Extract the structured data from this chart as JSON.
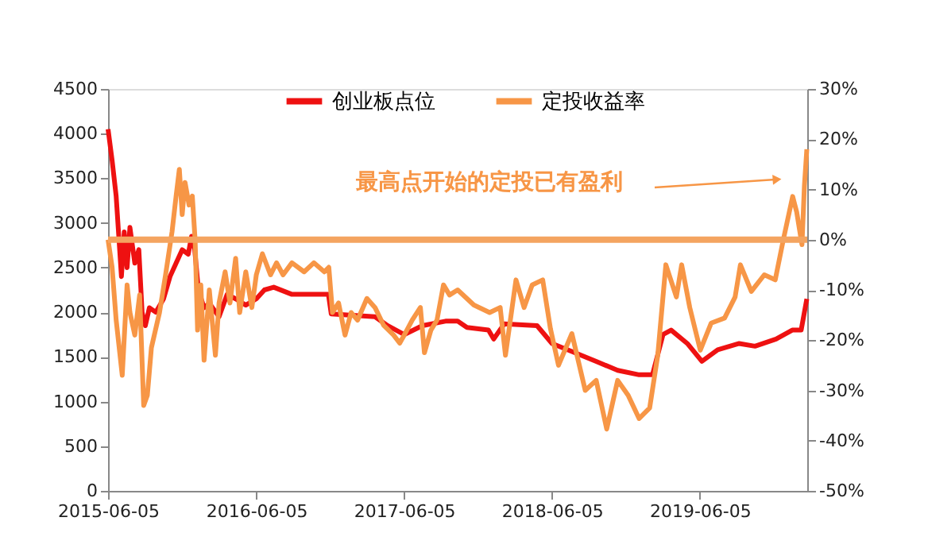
{
  "chart_data": {
    "type": "line",
    "annotations": [
      "最高点开始的定投已有盈利"
    ],
    "xlim": [
      "2015-06-05",
      "2020-02-25"
    ],
    "xticks": [
      "2015-06-05",
      "2016-06-05",
      "2017-06-05",
      "2018-06-05",
      "2019-06-05"
    ],
    "ylim": [
      0,
      4500
    ],
    "yticks": [
      0,
      500,
      1000,
      1500,
      2000,
      2500,
      3000,
      3500,
      4000,
      4500
    ],
    "y2lim": [
      -50,
      30
    ],
    "y2ticks": [
      {
        "value": -50,
        "label": "-50%"
      },
      {
        "value": -40,
        "label": "-40%"
      },
      {
        "value": -30,
        "label": "-30%"
      },
      {
        "value": -20,
        "label": "-20%"
      },
      {
        "value": -10,
        "label": "-10%"
      },
      {
        "value": 0,
        "label": "0%"
      },
      {
        "value": 10,
        "label": "10%"
      },
      {
        "value": 20,
        "label": "20%"
      },
      {
        "value": 30,
        "label": "30%"
      }
    ],
    "legend": "top",
    "grid": false,
    "ref_lines": [
      {
        "axis": "y2",
        "value": 0,
        "color": "#f4a460"
      }
    ],
    "series": [
      {
        "name": "创业板点位",
        "color": "#ee1111",
        "x": [
          "2015-06-05",
          "2015-06-15",
          "2015-06-25",
          "2015-07-08",
          "2015-07-15",
          "2015-07-22",
          "2015-07-29",
          "2015-08-10",
          "2015-08-20",
          "2015-08-28",
          "2015-09-05",
          "2015-09-15",
          "2015-10-01",
          "2015-10-20",
          "2015-11-05",
          "2015-11-20",
          "2015-12-05",
          "2015-12-20",
          "2015-12-28",
          "2016-01-05",
          "2016-01-14",
          "2016-01-28",
          "2016-02-10",
          "2016-03-05",
          "2016-03-25",
          "2016-04-15",
          "2016-05-10",
          "2016-06-05",
          "2016-06-25",
          "2016-07-18",
          "2016-09-01",
          "2016-11-30",
          "2016-12-07",
          "2017-03-25",
          "2017-04-25",
          "2017-06-05",
          "2017-07-20",
          "2017-09-15",
          "2017-10-15",
          "2017-11-07",
          "2017-12-30",
          "2018-01-12",
          "2018-02-07",
          "2018-04-29",
          "2018-06-05",
          "2018-07-30",
          "2018-09-22",
          "2018-11-14",
          "2019-01-06",
          "2019-02-08",
          "2019-03-06",
          "2019-03-26",
          "2019-05-05",
          "2019-06-10",
          "2019-07-19",
          "2019-09-10",
          "2019-10-19",
          "2019-12-10",
          "2020-01-19",
          "2020-02-10",
          "2020-02-24"
        ],
        "values": [
          4050,
          3700,
          3300,
          2400,
          2900,
          2500,
          2950,
          2550,
          2700,
          2000,
          1850,
          2050,
          2000,
          2150,
          2400,
          2550,
          2700,
          2650,
          2850,
          2700,
          2250,
          2050,
          2100,
          1950,
          2200,
          2150,
          2080,
          2150,
          2250,
          2280,
          2200,
          2200,
          1980,
          1950,
          1850,
          1750,
          1850,
          1900,
          1900,
          1830,
          1800,
          1700,
          1870,
          1850,
          1650,
          1550,
          1450,
          1350,
          1300,
          1300,
          1750,
          1800,
          1650,
          1450,
          1580,
          1650,
          1620,
          1700,
          1800,
          1800,
          2150
        ]
      },
      {
        "name": "定投收益率",
        "color": "#f79646",
        "axis": "y2",
        "x": [
          "2015-06-05",
          "2015-06-15",
          "2015-06-25",
          "2015-07-10",
          "2015-07-22",
          "2015-07-29",
          "2015-08-10",
          "2015-08-22",
          "2015-09-01",
          "2015-09-10",
          "2015-09-20",
          "2015-10-10",
          "2015-10-25",
          "2015-11-10",
          "2015-11-20",
          "2015-11-28",
          "2015-12-05",
          "2015-12-12",
          "2015-12-22",
          "2015-12-30",
          "2016-01-06",
          "2016-01-12",
          "2016-01-20",
          "2016-01-28",
          "2016-02-10",
          "2016-02-25",
          "2016-03-05",
          "2016-03-20",
          "2016-04-01",
          "2016-04-15",
          "2016-04-25",
          "2016-05-10",
          "2016-05-25",
          "2016-06-05",
          "2016-06-20",
          "2016-07-10",
          "2016-07-25",
          "2016-08-10",
          "2016-09-01",
          "2016-10-01",
          "2016-10-25",
          "2016-11-20",
          "2016-12-01",
          "2016-12-10",
          "2016-12-25",
          "2017-01-10",
          "2017-01-25",
          "2017-02-10",
          "2017-03-05",
          "2017-03-25",
          "2017-04-15",
          "2017-05-10",
          "2017-05-25",
          "2017-06-05",
          "2017-06-25",
          "2017-07-15",
          "2017-07-25",
          "2017-08-10",
          "2017-08-25",
          "2017-09-10",
          "2017-09-25",
          "2017-10-15",
          "2017-11-24",
          "2018-01-02",
          "2018-01-28",
          "2018-02-10",
          "2018-03-08",
          "2018-03-28",
          "2018-04-17",
          "2018-05-13",
          "2018-06-01",
          "2018-06-21",
          "2018-07-24",
          "2018-08-26",
          "2018-09-22",
          "2018-10-18",
          "2018-11-14",
          "2018-12-10",
          "2019-01-06",
          "2019-02-01",
          "2019-02-21",
          "2019-03-13",
          "2019-04-08",
          "2019-04-21",
          "2019-05-11",
          "2019-06-06",
          "2019-07-03",
          "2019-08-05",
          "2019-08-31",
          "2019-09-13",
          "2019-10-10",
          "2019-11-11",
          "2019-12-08",
          "2019-12-28",
          "2020-01-20",
          "2020-01-30",
          "2020-02-12",
          "2020-02-18",
          "2020-02-24"
        ],
        "values": [
          0,
          -5.5,
          -16,
          -27,
          -9,
          -14.5,
          -19,
          -11,
          -33,
          -31,
          -21.5,
          -14.5,
          -7,
          1.6,
          8.7,
          14,
          5,
          11.4,
          6.9,
          8.7,
          -0.2,
          -18,
          -9,
          -24,
          -10,
          -23,
          -12.6,
          -6.4,
          -12.6,
          -3.7,
          -14.5,
          -6.4,
          -13.5,
          -7,
          -2.8,
          -7,
          -4.6,
          -7,
          -4.6,
          -6.4,
          -4.6,
          -6.4,
          -5.5,
          -14.5,
          -12.6,
          -19,
          -14.5,
          -16,
          -11.7,
          -13.5,
          -17,
          -19,
          -20.6,
          -19,
          -16,
          -13.5,
          -22.5,
          -18,
          -16,
          -9,
          -11,
          -10,
          -13,
          -14.5,
          -13.5,
          -23,
          -8,
          -13.5,
          -9,
          -8,
          -17.7,
          -25,
          -18.7,
          -30,
          -28,
          -37.7,
          -28,
          -31,
          -35.6,
          -33.5,
          -23,
          -5,
          -11.4,
          -5,
          -13.5,
          -22,
          -16.6,
          -15.6,
          -11.4,
          -5,
          -10.3,
          -7,
          -8,
          0,
          8.6,
          5.5,
          -1,
          10.7,
          18
        ]
      }
    ]
  }
}
